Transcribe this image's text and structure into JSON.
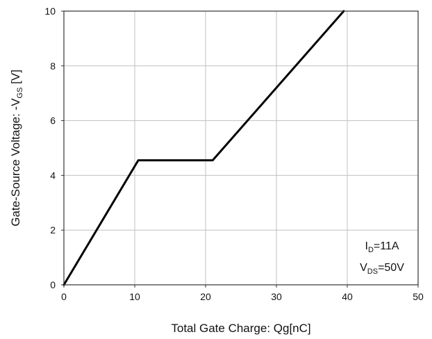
{
  "chart_data": {
    "type": "line",
    "title": "",
    "xlabel": "Total Gate Charge: Qg[nC]",
    "ylabel": {
      "main": "Gate-Source Voltage: -V",
      "sub": "GS",
      "unit": " [V]"
    },
    "xlim": [
      0,
      50
    ],
    "ylim": [
      0,
      10
    ],
    "x_ticks": [
      0,
      10,
      20,
      30,
      40,
      50
    ],
    "y_ticks": [
      0,
      2,
      4,
      6,
      8,
      10
    ],
    "grid": true,
    "legend": "none",
    "series": [
      {
        "x": [
          0,
          10.5,
          21,
          39.5
        ],
        "y": [
          0,
          4.55,
          4.55,
          10
        ],
        "color": "#000000"
      }
    ],
    "annotations": {
      "id": {
        "main": "I",
        "sub": "D",
        "value": "=11A"
      },
      "vds": {
        "main": "V",
        "sub": "DS",
        "value": "=50V"
      },
      "placement": "bottom-right"
    }
  }
}
